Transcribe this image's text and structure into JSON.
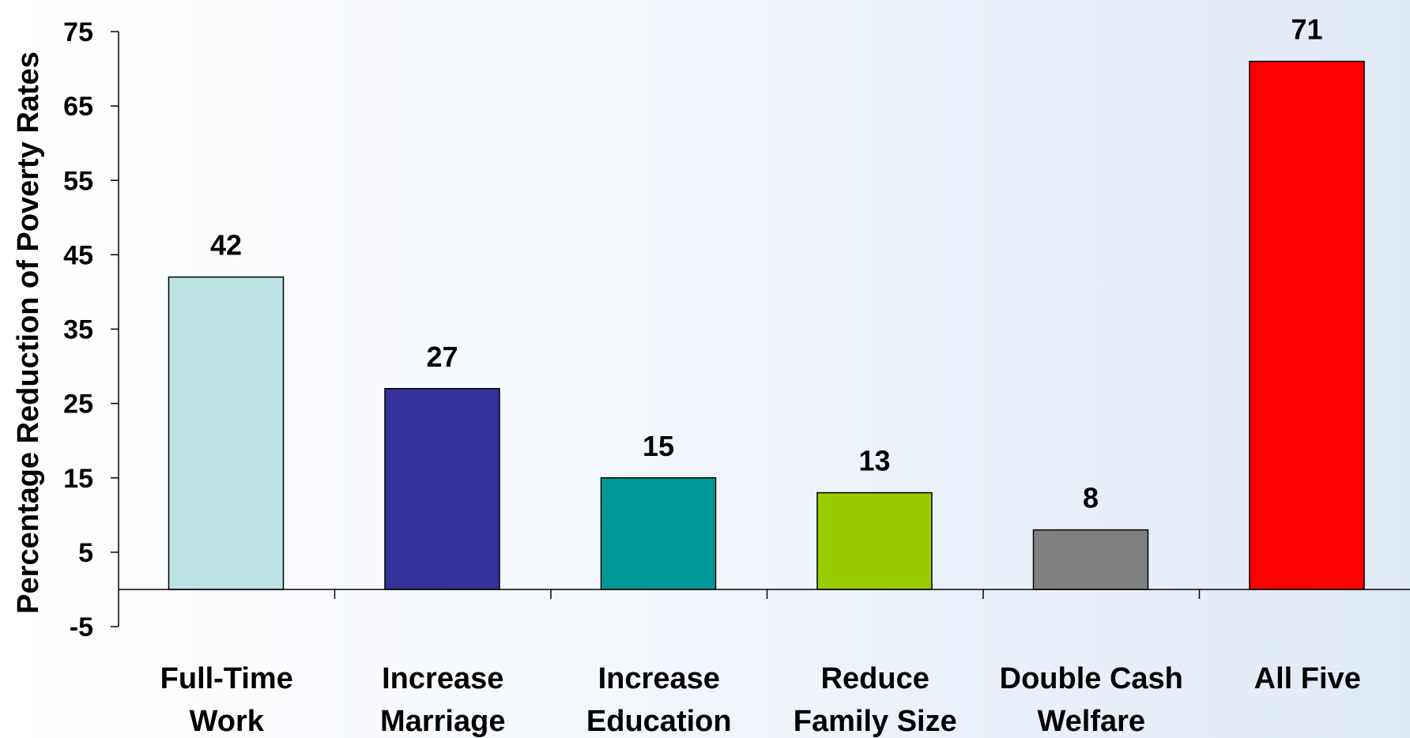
{
  "chart_data": {
    "type": "bar",
    "categories": [
      [
        "Full-Time",
        "Work"
      ],
      [
        "Increase",
        "Marriage"
      ],
      [
        "Increase",
        "Education"
      ],
      [
        "Reduce",
        "Family Size"
      ],
      [
        "Double Cash",
        "Welfare"
      ],
      [
        "All Five"
      ]
    ],
    "values": [
      42,
      27,
      15,
      13,
      8,
      71
    ],
    "colors": [
      "#bde2e6",
      "#333399",
      "#009999",
      "#99cc00",
      "#808080",
      "#ff0000"
    ],
    "ylabel": "Percentage Reduction of Poverty Rates",
    "ylim": [
      -5,
      75
    ],
    "yticks": [
      75,
      65,
      55,
      45,
      35,
      25,
      15,
      5,
      -5
    ],
    "grid": false,
    "legend": "none"
  }
}
